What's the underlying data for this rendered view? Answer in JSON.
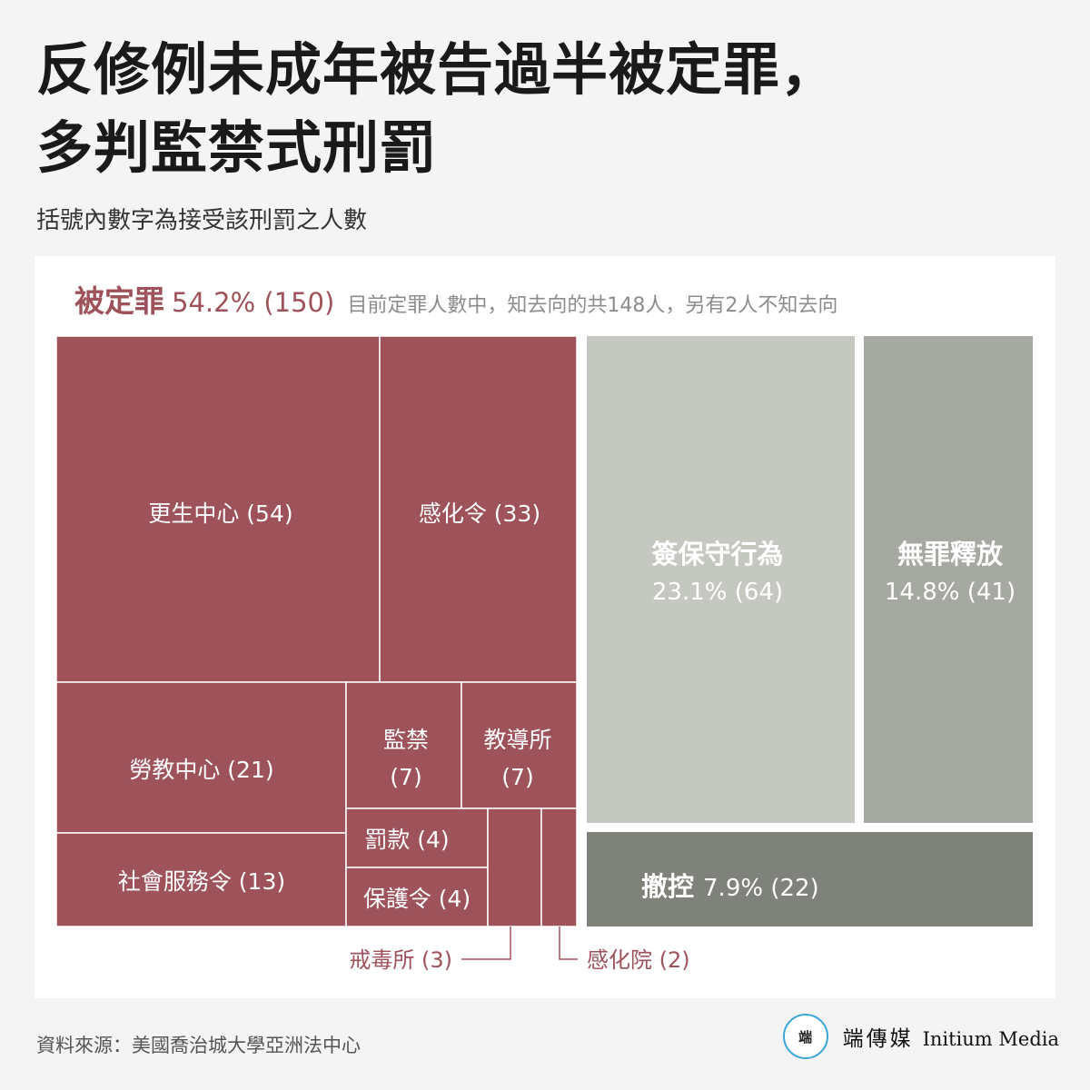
{
  "title_line1": "反修例未成年被告過半被定罪，",
  "title_line2": "多判監禁式刑罰",
  "subtitle": "括號內數字為接受該刑罰之人數",
  "header": {
    "category": "被定罪",
    "stats": "54.2% (150)",
    "note": "目前定罪人數中，知去向的共148人，另有2人不知去向"
  },
  "chart_data": {
    "type": "treemap",
    "title": "反修例未成年被告過半被定罪，多判監禁式刑罰",
    "subtitle": "括號內數字為接受該刑罰之人數",
    "groups": [
      {
        "name": "被定罪",
        "percent": 54.2,
        "count": 150,
        "color": "#9e525a",
        "note": "目前定罪人數中，知去向的共148人，另有2人不知去向",
        "children": [
          {
            "name": "更生中心",
            "count": 54,
            "label": "更生中心 (54)"
          },
          {
            "name": "感化令",
            "count": 33,
            "label": "感化令 (33)"
          },
          {
            "name": "勞教中心",
            "count": 21,
            "label": "勞教中心 (21)"
          },
          {
            "name": "監禁",
            "count": 7,
            "label_line1": "監禁",
            "label_line2": "(7)"
          },
          {
            "name": "教導所",
            "count": 7,
            "label_line1": "教導所",
            "label_line2": "(7)"
          },
          {
            "name": "社會服務令",
            "count": 13,
            "label": "社會服務令 (13)"
          },
          {
            "name": "罰款",
            "count": 4,
            "label": "罰款 (4)"
          },
          {
            "name": "保護令",
            "count": 4,
            "label": "保護令 (4)"
          },
          {
            "name": "戒毒所",
            "count": 3,
            "label": "戒毒所 (3)"
          },
          {
            "name": "感化院",
            "count": 2,
            "label": "感化院 (2)"
          }
        ]
      },
      {
        "name": "簽保守行為",
        "percent": 23.1,
        "count": 64,
        "stats": "23.1% (64)",
        "color": "#c5c8c1"
      },
      {
        "name": "無罪釋放",
        "percent": 14.8,
        "count": 41,
        "stats": "14.8% (41)",
        "color": "#a5a9a2"
      },
      {
        "name": "撤控",
        "percent": 7.9,
        "count": 22,
        "stats": "7.9% (22)",
        "color": "#7e827b"
      }
    ]
  },
  "source": "資料來源：美國喬治城大學亞洲法中心",
  "brand": {
    "logo_text": "端",
    "name_cn": "端傳媒",
    "name_en": "Initium Media"
  }
}
